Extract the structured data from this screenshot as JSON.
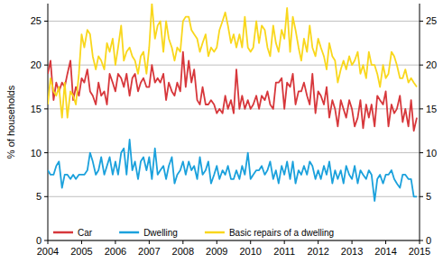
{
  "chart_data": {
    "type": "line",
    "y_label": "% of households",
    "x": [
      2004.0,
      2004.08,
      2004.17,
      2004.25,
      2004.33,
      2004.42,
      2004.5,
      2004.58,
      2004.67,
      2004.75,
      2004.83,
      2004.92,
      2005.0,
      2005.08,
      2005.17,
      2005.25,
      2005.33,
      2005.42,
      2005.5,
      2005.58,
      2005.67,
      2005.75,
      2005.83,
      2005.92,
      2006.0,
      2006.08,
      2006.17,
      2006.25,
      2006.33,
      2006.42,
      2006.5,
      2006.58,
      2006.67,
      2006.75,
      2006.83,
      2006.92,
      2007.0,
      2007.08,
      2007.17,
      2007.25,
      2007.33,
      2007.42,
      2007.5,
      2007.58,
      2007.67,
      2007.75,
      2007.83,
      2007.92,
      2008.0,
      2008.08,
      2008.17,
      2008.25,
      2008.33,
      2008.42,
      2008.5,
      2008.58,
      2008.67,
      2008.75,
      2008.83,
      2008.92,
      2009.0,
      2009.08,
      2009.17,
      2009.25,
      2009.33,
      2009.42,
      2009.5,
      2009.58,
      2009.67,
      2009.75,
      2009.83,
      2009.92,
      2010.0,
      2010.08,
      2010.17,
      2010.25,
      2010.33,
      2010.42,
      2010.5,
      2010.58,
      2010.67,
      2010.75,
      2010.83,
      2010.92,
      2011.0,
      2011.08,
      2011.17,
      2011.25,
      2011.33,
      2011.42,
      2011.5,
      2011.58,
      2011.67,
      2011.75,
      2011.83,
      2011.92,
      2012.0,
      2012.08,
      2012.17,
      2012.25,
      2012.33,
      2012.42,
      2012.5,
      2012.58,
      2012.67,
      2012.75,
      2012.83,
      2012.92,
      2013.0,
      2013.08,
      2013.17,
      2013.25,
      2013.33,
      2013.42,
      2013.5,
      2013.58,
      2013.67,
      2013.75,
      2013.83,
      2013.92,
      2014.0,
      2014.08,
      2014.17,
      2014.25,
      2014.33,
      2014.42,
      2014.5,
      2014.58,
      2014.67,
      2014.75,
      2014.83,
      2014.92
    ],
    "series": [
      {
        "name": "Car",
        "color": "#d7373b",
        "values": [
          19,
          20.5,
          16,
          18,
          17,
          18,
          17.5,
          19,
          20.5,
          16,
          17.5,
          16.5,
          18.5,
          18,
          19.5,
          17,
          16.5,
          15.5,
          18,
          16.5,
          17,
          15.5,
          19,
          18,
          17,
          19,
          18.5,
          17.5,
          19,
          16.5,
          18.5,
          19,
          17,
          18,
          18.5,
          17.5,
          17.5,
          20,
          18,
          18.5,
          18,
          19,
          16,
          18,
          17,
          16.5,
          18,
          17,
          21.5,
          17.5,
          20.5,
          18,
          19.5,
          16,
          15.5,
          17.5,
          15.5,
          15.5,
          16,
          15.5,
          14.5,
          15,
          14.5,
          16.5,
          15,
          16,
          14.5,
          19.5,
          15,
          16.5,
          15,
          16,
          15,
          15.5,
          16.5,
          15,
          16.5,
          16,
          17,
          15.5,
          15,
          18,
          18,
          18.5,
          15,
          18,
          17.5,
          19,
          15.5,
          17,
          17,
          18,
          16.5,
          15.5,
          19,
          14.5,
          17,
          16.5,
          15.5,
          17.5,
          14,
          16,
          15,
          13,
          16,
          15,
          14,
          16,
          15,
          13,
          14,
          16,
          12.8,
          15.5,
          14,
          15.5,
          13,
          16.5,
          16,
          15.5,
          17,
          13,
          15.5,
          14.5,
          15,
          16.5,
          13.5,
          15,
          13,
          16,
          12.5,
          14
        ]
      },
      {
        "name": "Dwelling",
        "color": "#1ba1dc",
        "values": [
          8,
          7.5,
          7.5,
          8.5,
          9,
          6,
          7.5,
          7.5,
          7,
          7.5,
          7,
          7.5,
          7.5,
          7.5,
          8,
          10,
          9,
          7.5,
          8,
          9.5,
          7.5,
          8.5,
          9.5,
          7.5,
          9,
          7.5,
          10,
          10.5,
          7.5,
          11.5,
          8,
          9,
          7,
          9,
          9.5,
          8,
          9.5,
          7,
          10.5,
          7.5,
          8,
          8.5,
          7,
          8.5,
          9.5,
          6.5,
          7.5,
          8,
          9,
          7.5,
          9,
          8,
          8.5,
          7,
          9.5,
          7.5,
          8,
          9,
          6.5,
          7.5,
          8.5,
          7,
          8,
          7.5,
          8.5,
          7,
          7,
          8,
          7,
          8.5,
          7.5,
          10,
          7,
          7.5,
          8,
          8,
          8.5,
          7.5,
          8,
          9,
          7,
          8,
          6.5,
          8.5,
          7.5,
          9,
          7,
          9,
          6.5,
          8,
          7.5,
          8.5,
          7.5,
          9,
          8.5,
          7,
          8,
          7,
          8.5,
          7.5,
          9,
          6.5,
          8,
          7,
          8,
          6.5,
          8.5,
          7.5,
          7,
          8.5,
          6.5,
          8,
          7.5,
          7,
          8,
          7.5,
          4.5,
          7,
          7.5,
          6.5,
          7.5,
          7.5,
          8,
          7,
          6.5,
          6,
          7.5,
          7.5,
          7,
          7,
          5,
          5
        ]
      },
      {
        "name": "Basic repairs of a dwelling",
        "color": "#f9d71c",
        "values": [
          15.5,
          18.5,
          17,
          16.5,
          17.5,
          14,
          18,
          14,
          17,
          16.5,
          15.5,
          19,
          23.5,
          22,
          24,
          23.5,
          21,
          19.5,
          21,
          20.5,
          19.5,
          22.5,
          21.5,
          23,
          20,
          22,
          24.5,
          20.5,
          21.5,
          22,
          21,
          20.5,
          19,
          21,
          21.5,
          19,
          22,
          27,
          23,
          24.5,
          25,
          21.5,
          25,
          23,
          22,
          20.5,
          22,
          21.5,
          25,
          25.5,
          25.5,
          24,
          23.5,
          23,
          21.5,
          22.5,
          23.5,
          21,
          22,
          21.5,
          22,
          24,
          25,
          26,
          24.5,
          22.5,
          23.5,
          22,
          23.5,
          22,
          25.5,
          22,
          21.5,
          22,
          25,
          22.5,
          24.5,
          24,
          22,
          21,
          24.5,
          22.5,
          21.5,
          24,
          23,
          26.5,
          21.5,
          25.5,
          24,
          22,
          20.5,
          23,
          21.5,
          24.5,
          22,
          21,
          23,
          22,
          21,
          19.5,
          22.5,
          21,
          20.5,
          18,
          19.5,
          20.5,
          19.5,
          21,
          20,
          20.5,
          21.5,
          19,
          20,
          18.5,
          21.5,
          20,
          20,
          19,
          17.5,
          20,
          18.5,
          19,
          21.5,
          21,
          20,
          18.5,
          18.5,
          19.5,
          18,
          18.5,
          18,
          17.5
        ]
      }
    ],
    "xlim": [
      2004,
      2015
    ],
    "xticks": [
      2004,
      2005,
      2006,
      2007,
      2008,
      2009,
      2010,
      2011,
      2012,
      2013,
      2014,
      2015
    ],
    "ylim": [
      0,
      27
    ],
    "yticks": [
      0,
      5,
      10,
      15,
      20,
      25
    ],
    "grid": true,
    "legend": "lower left"
  }
}
